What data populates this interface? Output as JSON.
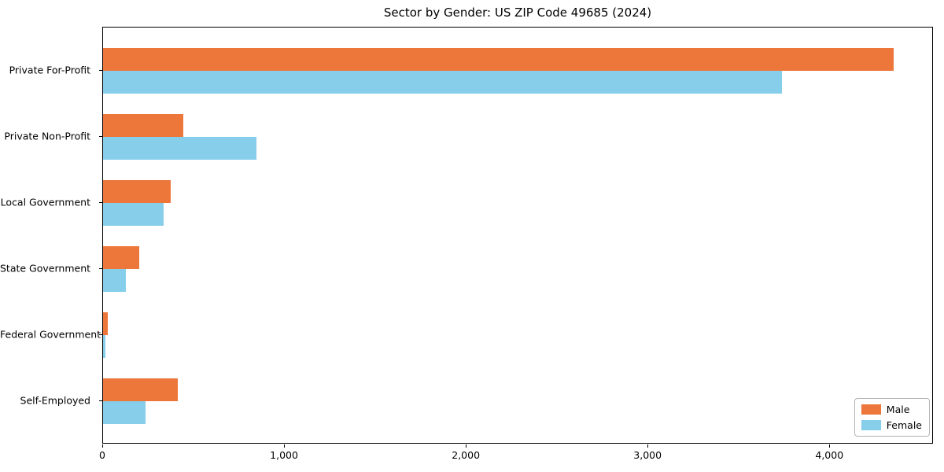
{
  "title": "Sector by Gender: US ZIP Code 49685 (2024)",
  "colors": {
    "male": "#ED763B",
    "female": "#87CEEB",
    "axis": "#000000",
    "legend_border": "#b3b3b3",
    "background": "#ffffff"
  },
  "chart_data": {
    "type": "bar",
    "orientation": "horizontal",
    "title": "Sector by Gender: US ZIP Code 49685 (2024)",
    "categories": [
      "Private For-Profit",
      "Private Non-Profit",
      "Local Government",
      "State Government",
      "Federal Government",
      "Self-Employed"
    ],
    "series": [
      {
        "name": "Male",
        "color": "#ED763B",
        "values": [
          4350,
          440,
          370,
          200,
          25,
          410
        ]
      },
      {
        "name": "Female",
        "color": "#87CEEB",
        "values": [
          3735,
          845,
          335,
          125,
          12,
          235
        ]
      }
    ],
    "xlabel": "",
    "ylabel": "",
    "xlim": [
      0,
      4570
    ],
    "x_tick_values": [
      0,
      1000,
      2000,
      3000,
      4000
    ],
    "x_tick_labels": [
      "0",
      "1,000",
      "2,000",
      "3,000",
      "4,000"
    ],
    "grid": false,
    "legend_position": "lower right"
  }
}
